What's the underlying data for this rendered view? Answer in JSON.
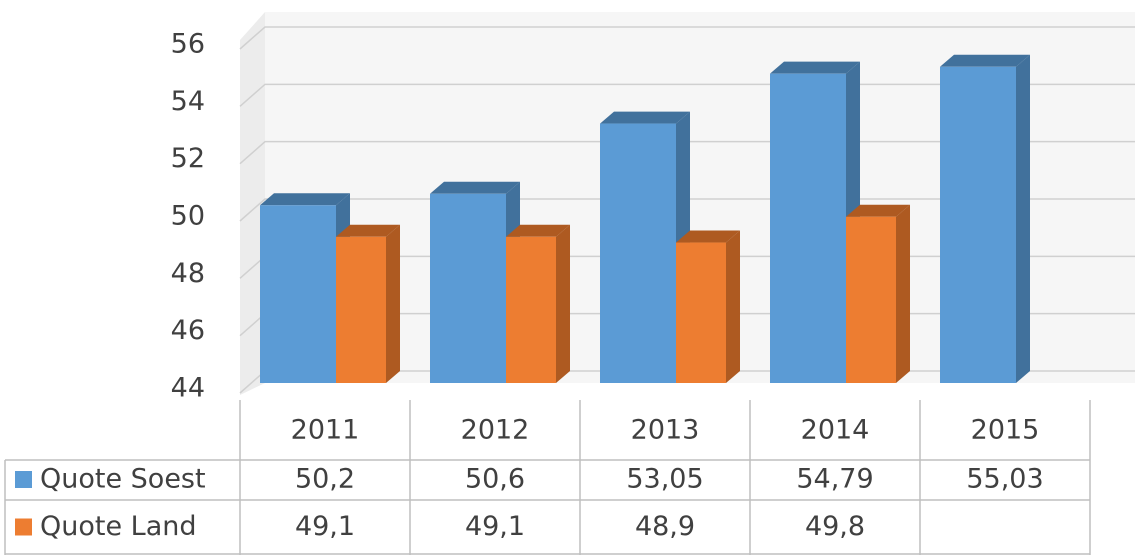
{
  "chart_data": {
    "type": "bar3d",
    "categories": [
      "2011",
      "2012",
      "2013",
      "2014",
      "2015"
    ],
    "series": [
      {
        "name": "Quote Soest",
        "color": "#5b9bd5",
        "values": [
          50.2,
          50.6,
          53.05,
          54.79,
          55.03
        ],
        "value_labels": [
          "50,2",
          "50,6",
          "53,05",
          "54,79",
          "55,03"
        ]
      },
      {
        "name": "Quote Land",
        "color": "#ed7d31",
        "values": [
          49.1,
          49.1,
          48.9,
          49.8,
          null
        ],
        "value_labels": [
          "49,1",
          "49,1",
          "48,9",
          "49,8",
          null
        ]
      }
    ],
    "ylim": [
      44,
      56
    ],
    "yticks": [
      44,
      46,
      48,
      50,
      52,
      54,
      56
    ],
    "grid": true,
    "data_table": true
  }
}
